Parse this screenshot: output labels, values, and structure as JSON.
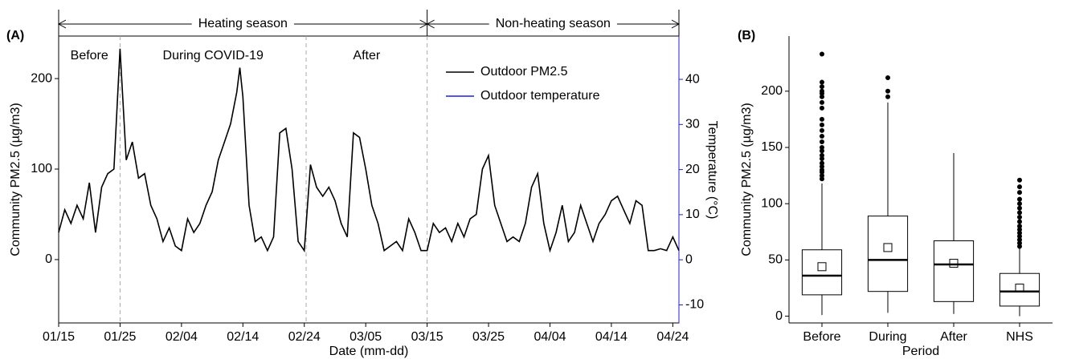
{
  "chart_data": [
    {
      "type": "line",
      "panel_label": "(A)",
      "x_label": "Date (mm-dd)",
      "y_label": "Community PM2.5 (µg/m3)",
      "y2_label": "Temperature (°C)",
      "xlim": [
        0,
        101
      ],
      "ylim": [
        -70,
        247
      ],
      "y2lim": [
        -14,
        49.6
      ],
      "xticks": [
        {
          "value": 0,
          "label": "01/15"
        },
        {
          "value": 10,
          "label": "01/25"
        },
        {
          "value": 20,
          "label": "02/04"
        },
        {
          "value": 30,
          "label": "02/14"
        },
        {
          "value": 40,
          "label": "02/24"
        },
        {
          "value": 50,
          "label": "03/05"
        },
        {
          "value": 60,
          "label": "03/15"
        },
        {
          "value": 70,
          "label": "03/25"
        },
        {
          "value": 80,
          "label": "04/04"
        },
        {
          "value": 90,
          "label": "04/14"
        },
        {
          "value": 100,
          "label": "04/24"
        }
      ],
      "yticks": [
        0,
        100,
        200
      ],
      "y2ticks": [
        -10,
        0,
        10,
        20,
        30,
        40
      ],
      "y2_color": "#1f1fe0",
      "period_breaks": [
        10,
        40.3,
        60
      ],
      "period_labels": [
        "Before",
        "During COVID-19",
        "After"
      ],
      "seasons": [
        "Heating season",
        "Non-heating season"
      ],
      "legend": "upper right",
      "x": [
        0,
        1,
        2,
        3,
        4,
        5,
        6,
        7,
        8,
        9,
        10,
        11,
        12,
        13,
        14,
        15,
        16,
        17,
        18,
        19,
        20,
        21,
        22,
        23,
        24,
        25,
        26,
        27,
        28,
        29,
        29.5,
        30,
        31,
        32,
        33,
        34,
        35,
        36,
        37,
        38,
        39,
        40,
        41,
        42,
        43,
        44,
        45,
        46,
        47,
        48,
        49,
        50,
        51,
        52,
        53,
        54,
        55,
        56,
        57,
        58,
        59,
        60,
        61,
        62,
        63,
        64,
        65,
        66,
        67,
        68,
        69,
        70,
        71,
        72,
        73,
        74,
        75,
        76,
        77,
        78,
        79,
        80,
        81,
        82,
        83,
        84,
        85,
        86,
        87,
        88,
        89,
        90,
        91,
        92,
        93,
        94,
        95,
        96,
        97,
        98,
        99,
        100,
        101
      ],
      "series": [
        {
          "name": "Outdoor PM2.5",
          "color": "#000000",
          "values": [
            30,
            55,
            40,
            60,
            45,
            85,
            30,
            80,
            95,
            100,
            233,
            110,
            130,
            90,
            95,
            60,
            45,
            20,
            35,
            15,
            10,
            45,
            30,
            40,
            60,
            75,
            110,
            130,
            150,
            185,
            212,
            180,
            60,
            20,
            25,
            10,
            25,
            140,
            145,
            100,
            20,
            10,
            105,
            80,
            70,
            80,
            65,
            40,
            25,
            140,
            135,
            100,
            60,
            40,
            10,
            15,
            20,
            10,
            45,
            30,
            10,
            10,
            40,
            30,
            35,
            20,
            40,
            25,
            45,
            50,
            100,
            115,
            60,
            40,
            20,
            25,
            20,
            40,
            80,
            95,
            40,
            10,
            30,
            60,
            20,
            30,
            60,
            40,
            20,
            40,
            50,
            65,
            70,
            55,
            40,
            65,
            60,
            10,
            10,
            12,
            10,
            25,
            10
          ]
        },
        {
          "name": "Outdoor temperature",
          "color": "#1f1fe0",
          "axis": "y2"
        }
      ]
    },
    {
      "type": "box",
      "panel_label": "(B)",
      "x_label": "Period",
      "y_label": "Community PM2.5 (µg/m3)",
      "categories": [
        "Before",
        "During",
        "After",
        "NHS"
      ],
      "ylim": [
        -6,
        249
      ],
      "yticks": [
        0,
        50,
        100,
        150,
        200
      ],
      "boxes": [
        {
          "min": 1,
          "q1": 19,
          "median": 36,
          "q3": 59,
          "max": 118,
          "mean": 44,
          "outliers": [
            122,
            125,
            128,
            130,
            133,
            136,
            140,
            143,
            147,
            150,
            155,
            160,
            165,
            170,
            175,
            185,
            190,
            195,
            198,
            200,
            204,
            208,
            233
          ]
        },
        {
          "min": 3,
          "q1": 22,
          "median": 50,
          "q3": 89,
          "max": 190,
          "mean": 61,
          "outliers": [
            195,
            200,
            212
          ]
        },
        {
          "min": 2,
          "q1": 13,
          "median": 46,
          "q3": 67,
          "max": 145,
          "mean": 47,
          "outliers": []
        },
        {
          "min": 0,
          "q1": 9,
          "median": 22,
          "q3": 38,
          "max": 60,
          "mean": 25,
          "outliers": [
            62,
            65,
            68,
            71,
            74,
            77,
            80,
            84,
            88,
            92,
            96,
            100,
            104,
            110,
            115,
            121
          ]
        }
      ]
    }
  ]
}
